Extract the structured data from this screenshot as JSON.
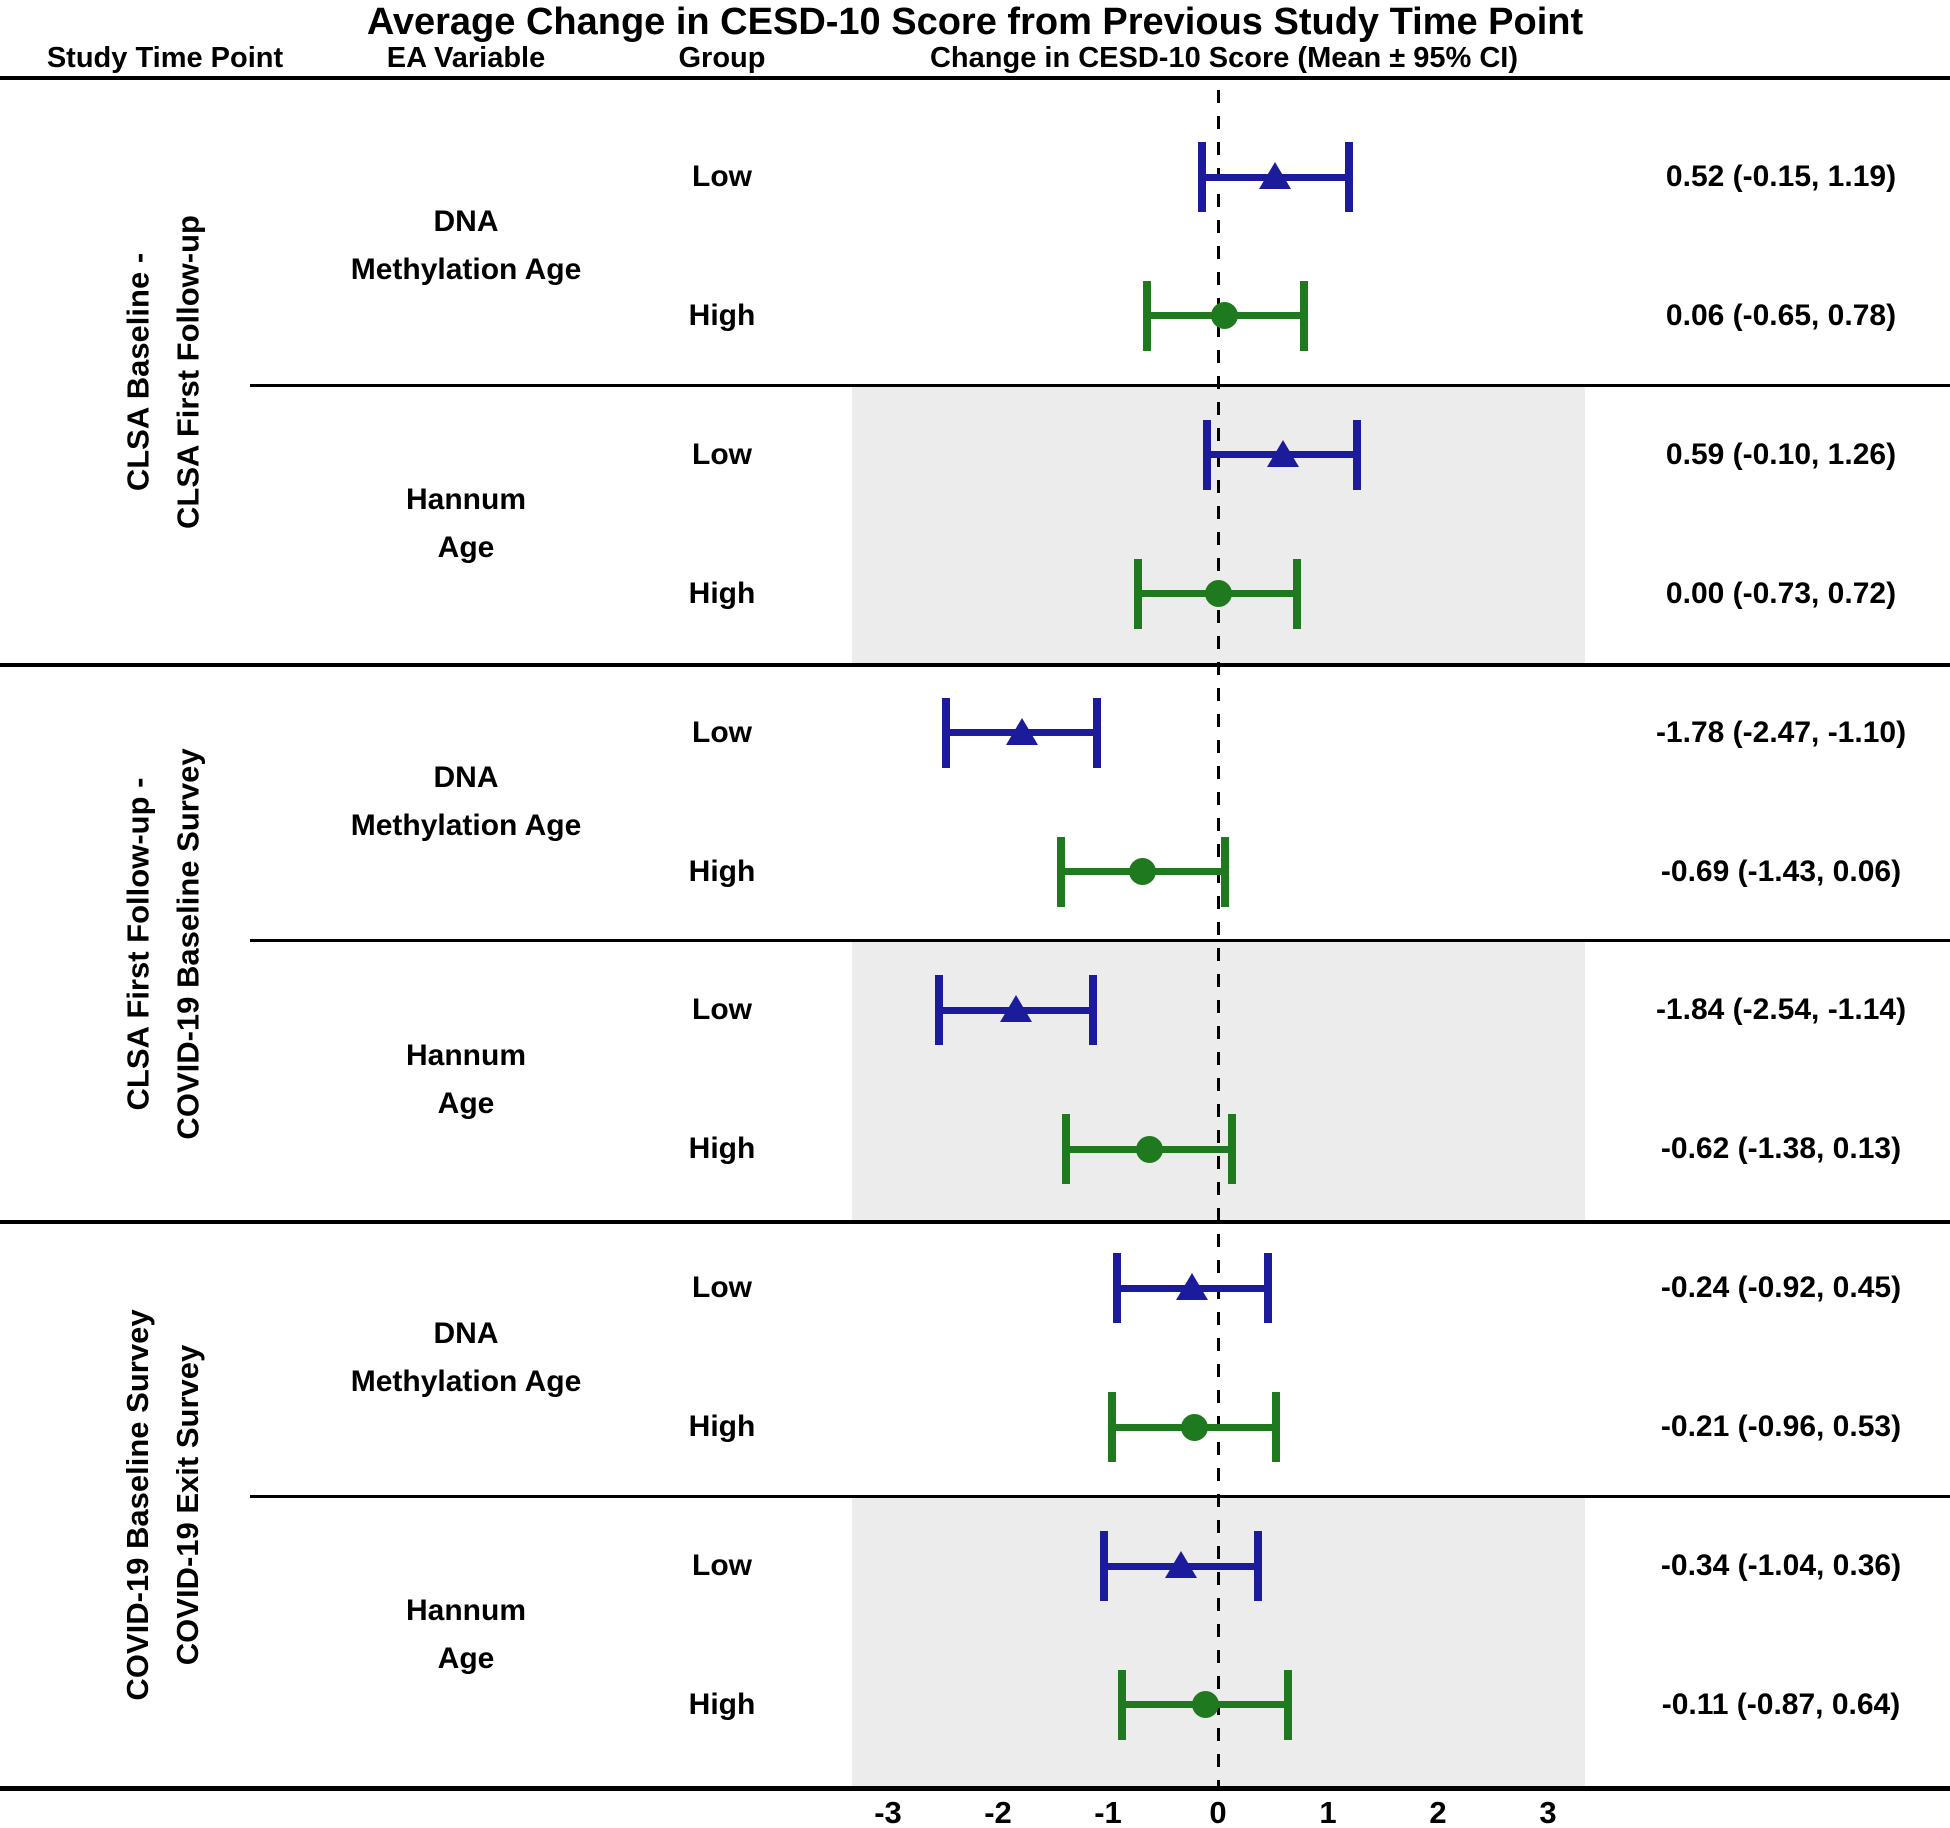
{
  "chart_data": {
    "type": "forest",
    "title": "Average Change in CESD-10 Score from Previous Study Time Point",
    "columns": {
      "study_time_point": "Study Time Point",
      "ea_variable": "EA Variable",
      "group": "Group",
      "change": "Change in CESD-10 Score (Mean ± 95% CI)"
    },
    "x_axis": {
      "ticks": [
        -3,
        -2,
        -1,
        0,
        1,
        2,
        3
      ],
      "zero_reference_line": 0,
      "grid": false
    },
    "legend": {
      "low_marker": "triangle",
      "high_marker": "circle"
    },
    "colors": {
      "low": "#1b1b9b",
      "high": "#1f7a1f",
      "band": "#ececec",
      "line": "#000000"
    },
    "sections": [
      {
        "label_lines": [
          "CLSA Baseline -",
          "CLSA First Follow-up"
        ],
        "variables": [
          {
            "label_lines": [
              "DNA",
              "Methylation Age"
            ],
            "shaded": false,
            "rows": [
              {
                "group": "Low",
                "mean": 0.52,
                "lo": -0.15,
                "hi": 1.19,
                "ci_text": "0.52 (-0.15, 1.19)",
                "marker": "triangle",
                "color": "#1b1b9b"
              },
              {
                "group": "High",
                "mean": 0.06,
                "lo": -0.65,
                "hi": 0.78,
                "ci_text": "0.06 (-0.65, 0.78)",
                "marker": "circle",
                "color": "#1f7a1f"
              }
            ]
          },
          {
            "label_lines": [
              "Hannum",
              "Age"
            ],
            "shaded": true,
            "rows": [
              {
                "group": "Low",
                "mean": 0.59,
                "lo": -0.1,
                "hi": 1.26,
                "ci_text": "0.59 (-0.10, 1.26)",
                "marker": "triangle",
                "color": "#1b1b9b"
              },
              {
                "group": "High",
                "mean": 0.0,
                "lo": -0.73,
                "hi": 0.72,
                "ci_text": "0.00 (-0.73, 0.72)",
                "marker": "circle",
                "color": "#1f7a1f"
              }
            ]
          }
        ]
      },
      {
        "label_lines": [
          "CLSA First Follow-up -",
          "COVID-19 Baseline Survey"
        ],
        "variables": [
          {
            "label_lines": [
              "DNA",
              "Methylation Age"
            ],
            "shaded": false,
            "rows": [
              {
                "group": "Low",
                "mean": -1.78,
                "lo": -2.47,
                "hi": -1.1,
                "ci_text": "-1.78 (-2.47, -1.10)",
                "marker": "triangle",
                "color": "#1b1b9b"
              },
              {
                "group": "High",
                "mean": -0.69,
                "lo": -1.43,
                "hi": 0.06,
                "ci_text": "-0.69 (-1.43, 0.06)",
                "marker": "circle",
                "color": "#1f7a1f"
              }
            ]
          },
          {
            "label_lines": [
              "Hannum",
              "Age"
            ],
            "shaded": true,
            "rows": [
              {
                "group": "Low",
                "mean": -1.84,
                "lo": -2.54,
                "hi": -1.14,
                "ci_text": "-1.84 (-2.54, -1.14)",
                "marker": "triangle",
                "color": "#1b1b9b"
              },
              {
                "group": "High",
                "mean": -0.62,
                "lo": -1.38,
                "hi": 0.13,
                "ci_text": "-0.62 (-1.38, 0.13)",
                "marker": "circle",
                "color": "#1f7a1f"
              }
            ]
          }
        ]
      },
      {
        "label_lines": [
          "COVID-19 Baseline Survey",
          "COVID-19 Exit Survey"
        ],
        "variables": [
          {
            "label_lines": [
              "DNA",
              "Methylation Age"
            ],
            "shaded": false,
            "rows": [
              {
                "group": "Low",
                "mean": -0.24,
                "lo": -0.92,
                "hi": 0.45,
                "ci_text": "-0.24 (-0.92, 0.45)",
                "marker": "triangle",
                "color": "#1b1b9b"
              },
              {
                "group": "High",
                "mean": -0.21,
                "lo": -0.96,
                "hi": 0.53,
                "ci_text": "-0.21 (-0.96, 0.53)",
                "marker": "circle",
                "color": "#1f7a1f"
              }
            ]
          },
          {
            "label_lines": [
              "Hannum",
              "Age"
            ],
            "shaded": true,
            "rows": [
              {
                "group": "Low",
                "mean": -0.34,
                "lo": -1.04,
                "hi": 0.36,
                "ci_text": "-0.34 (-1.04, 0.36)",
                "marker": "triangle",
                "color": "#1b1b9b"
              },
              {
                "group": "High",
                "mean": -0.11,
                "lo": -0.87,
                "hi": 0.64,
                "ci_text": "-0.11 (-0.87, 0.64)",
                "marker": "circle",
                "color": "#1f7a1f"
              }
            ]
          }
        ]
      }
    ]
  }
}
